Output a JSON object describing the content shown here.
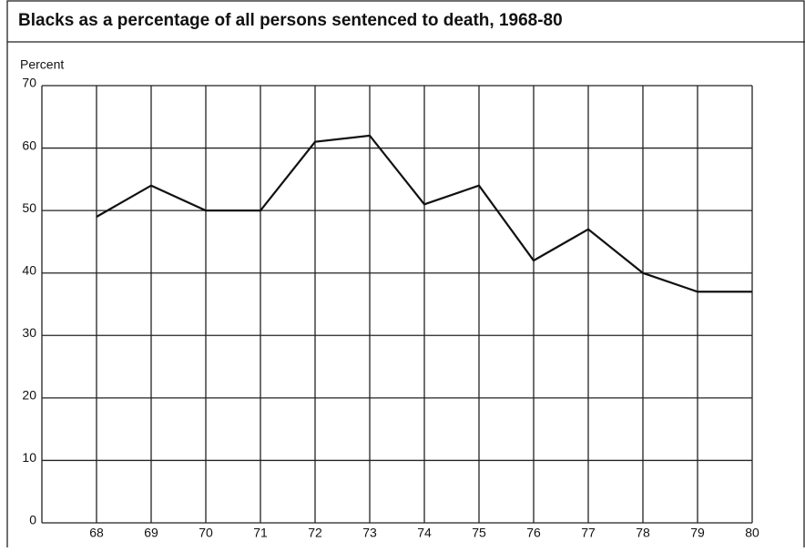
{
  "chart_data": {
    "type": "line",
    "title": "Blacks as a percentage of all persons sentenced to death, 1968-80",
    "y_label": "Percent",
    "x": [
      68,
      69,
      70,
      71,
      72,
      73,
      74,
      75,
      76,
      77,
      78,
      79,
      80
    ],
    "series": [
      {
        "name": null,
        "color": "#111111",
        "values": [
          49,
          54,
          50,
          50,
          61,
          62,
          51,
          54,
          42,
          47,
          40,
          37,
          37
        ]
      }
    ],
    "xlim": [
      67,
      80
    ],
    "xticks": [
      68,
      69,
      70,
      71,
      72,
      73,
      74,
      75,
      76,
      77,
      78,
      79,
      80
    ],
    "ylim": [
      0,
      70
    ],
    "yticks": [
      0,
      10,
      20,
      30,
      40,
      50,
      60,
      70
    ],
    "grid": true
  }
}
